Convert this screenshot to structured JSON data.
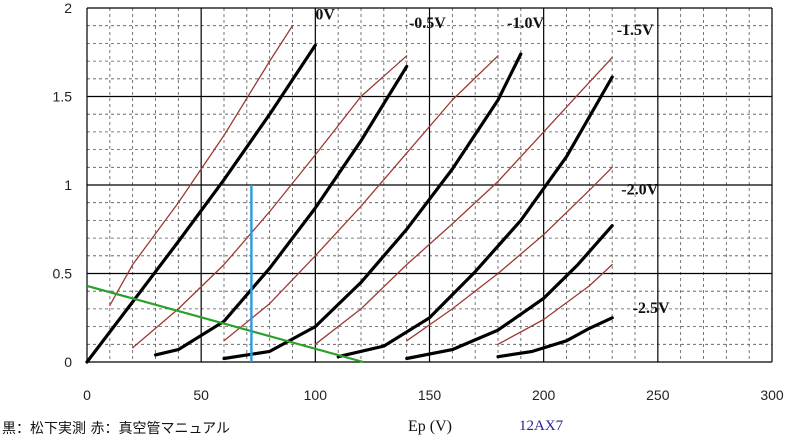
{
  "chart_data": {
    "type": "line",
    "xlabel": "Ep (V)",
    "ylabel": "",
    "xlim": [
      0,
      300
    ],
    "ylim": [
      0,
      2
    ],
    "x_ticks": [
      "0",
      "50",
      "100",
      "150",
      "200",
      "250",
      "300"
    ],
    "y_ticks": [
      "0",
      "0.5",
      "1",
      "1.5",
      "2"
    ],
    "grid": true,
    "source_note": "黒：松下実測 赤：真空管マニュアル",
    "tube": "12AX7",
    "colors": {
      "measured": "#000000",
      "manual": "#9b3a34",
      "load_line": "#2aa02a",
      "bias_line": "#2b9be0",
      "grid_major": "#000000",
      "grid_minor": "#555555"
    },
    "curve_labels": [
      {
        "text": "0V",
        "x": 100,
        "y": 1.97
      },
      {
        "text": "-0.5V",
        "x": 141,
        "y": 1.92
      },
      {
        "text": "-1.0V",
        "x": 184,
        "y": 1.92
      },
      {
        "text": "-1.5V",
        "x": 232,
        "y": 1.88
      },
      {
        "text": "-2.0V",
        "x": 234,
        "y": 0.98
      },
      {
        "text": "-2.5V",
        "x": 239,
        "y": 0.31
      }
    ],
    "series": [
      {
        "group": "measured",
        "grid_voltage": "0V",
        "x": [
          0,
          20,
          40,
          60,
          80,
          100
        ],
        "y": [
          0,
          0.34,
          0.68,
          1.03,
          1.4,
          1.79
        ]
      },
      {
        "group": "measured",
        "grid_voltage": "-0.5V",
        "x": [
          30,
          40,
          60,
          80,
          100,
          120,
          140
        ],
        "y": [
          0.04,
          0.07,
          0.23,
          0.53,
          0.87,
          1.25,
          1.67
        ]
      },
      {
        "group": "measured",
        "grid_voltage": "-1.0V",
        "x": [
          60,
          80,
          100,
          120,
          140,
          160,
          180,
          190
        ],
        "y": [
          0.02,
          0.06,
          0.2,
          0.45,
          0.75,
          1.09,
          1.48,
          1.74
        ]
      },
      {
        "group": "measured",
        "grid_voltage": "-1.5V",
        "x": [
          110,
          130,
          150,
          170,
          190,
          210,
          230
        ],
        "y": [
          0.03,
          0.09,
          0.25,
          0.51,
          0.8,
          1.16,
          1.61
        ]
      },
      {
        "group": "measured",
        "grid_voltage": "-2.0V",
        "x": [
          140,
          160,
          180,
          200,
          215,
          230
        ],
        "y": [
          0.02,
          0.07,
          0.18,
          0.36,
          0.55,
          0.77
        ]
      },
      {
        "group": "measured",
        "grid_voltage": "-2.5V",
        "x": [
          180,
          195,
          210,
          220,
          230
        ],
        "y": [
          0.03,
          0.06,
          0.12,
          0.19,
          0.25
        ]
      },
      {
        "group": "manual",
        "grid_voltage": "0V",
        "x": [
          10,
          20,
          40,
          60,
          80,
          90
        ],
        "y": [
          0.32,
          0.55,
          0.9,
          1.28,
          1.7,
          1.9
        ]
      },
      {
        "group": "manual",
        "grid_voltage": "-0.5V",
        "x": [
          20,
          40,
          60,
          80,
          100,
          120,
          140
        ],
        "y": [
          0.08,
          0.3,
          0.55,
          0.85,
          1.17,
          1.5,
          1.73
        ]
      },
      {
        "group": "manual",
        "grid_voltage": "-1.0V",
        "x": [
          60,
          80,
          100,
          120,
          140,
          160,
          180
        ],
        "y": [
          0.12,
          0.33,
          0.6,
          0.88,
          1.18,
          1.48,
          1.73
        ]
      },
      {
        "group": "manual",
        "grid_voltage": "-1.5V",
        "x": [
          100,
          120,
          140,
          160,
          180,
          200,
          220,
          230
        ],
        "y": [
          0.1,
          0.3,
          0.55,
          0.78,
          1.02,
          1.3,
          1.58,
          1.72
        ]
      },
      {
        "group": "manual",
        "grid_voltage": "-2.0V",
        "x": [
          140,
          160,
          180,
          200,
          220,
          230
        ],
        "y": [
          0.12,
          0.3,
          0.5,
          0.72,
          0.97,
          1.1
        ]
      },
      {
        "group": "manual",
        "grid_voltage": "-2.5V",
        "x": [
          180,
          200,
          220,
          230
        ],
        "y": [
          0.1,
          0.24,
          0.43,
          0.55
        ]
      }
    ],
    "load_line": {
      "x": [
        0,
        121
      ],
      "y": [
        0.43,
        0
      ]
    },
    "bias_line": {
      "x": [
        72,
        72
      ],
      "y": [
        0,
        1.0
      ]
    }
  }
}
